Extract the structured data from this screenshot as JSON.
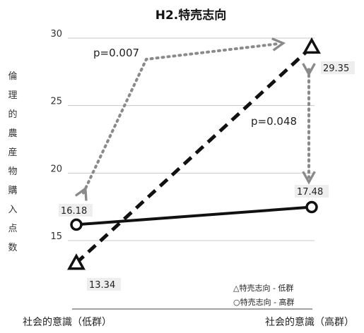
{
  "chart_data": {
    "type": "line",
    "title": "H2.特売志向",
    "ylabel": "倫理的農産物購入点数",
    "ylim": [
      15,
      30
    ],
    "yticks": [
      15,
      20,
      25,
      30
    ],
    "grid": true,
    "categories": [
      "社会的意識（低群）",
      "社会的意識（高群）"
    ],
    "series": [
      {
        "name": "△特売志向 - 低群",
        "marker": "triangle",
        "line": "dashed",
        "values": [
          13.34,
          29.35
        ],
        "labels": [
          "13.34",
          "29.35"
        ]
      },
      {
        "name": "○特売志向 - 高群",
        "marker": "circle",
        "line": "solid",
        "values": [
          16.18,
          17.48
        ],
        "labels": [
          "16.18",
          "17.48"
        ]
      }
    ],
    "annotations": [
      {
        "text": "p=0.007",
        "between": "△特売志向 - 低群 vs ○特売志向 - 低群 社会的意識"
      },
      {
        "text": "p=0.048",
        "between": "△特売志向 - 高群 vs ○特売志向 - 高群 社会的意識"
      }
    ],
    "legend_position": "bottom-right",
    "colors": {
      "line": "#111111",
      "grid": "#c8c8c8",
      "arrow": "#8a8a8a",
      "label_bg": "#eeeeee"
    }
  }
}
